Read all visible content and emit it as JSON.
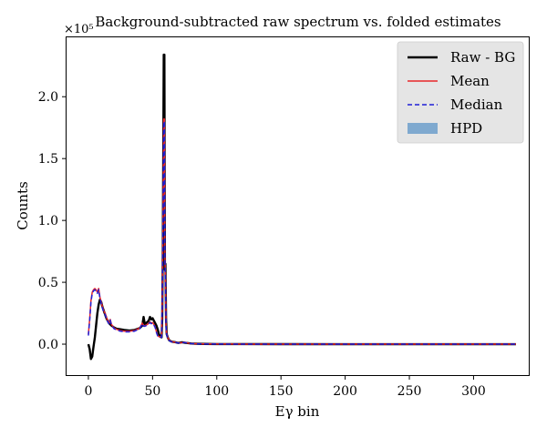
{
  "chart_data": {
    "type": "line",
    "title": "Background-subtracted raw spectrum vs. folded estimates",
    "xlabel": "Eγ bin",
    "ylabel": "Counts",
    "y_multiplier_label": "×10⁵",
    "y_scale_factor": 100000,
    "xlim": [
      -17,
      343
    ],
    "ylim": [
      -25000,
      248000
    ],
    "xticks": [
      0,
      50,
      100,
      150,
      200,
      250,
      300
    ],
    "xtick_labels": [
      "0",
      "50",
      "100",
      "150",
      "200",
      "250",
      "300"
    ],
    "yticks": [
      0,
      50000,
      100000,
      150000,
      200000
    ],
    "ytick_labels": [
      "0.0",
      "0.5",
      "1.0",
      "1.5",
      "2.0"
    ],
    "legend_position": "top-right",
    "legend": [
      {
        "label": "Raw - BG",
        "style": "solid-line",
        "color": "#000000"
      },
      {
        "label": "Mean",
        "style": "solid-line",
        "color": "#e8262a"
      },
      {
        "label": "Median",
        "style": "dashed-line",
        "color": "#1f1fd6"
      },
      {
        "label": "HPD",
        "style": "patch",
        "color": "#7fa9cf"
      }
    ],
    "series": [
      {
        "name": "Raw - BG",
        "color": "#000000",
        "points": [
          [
            0,
            0
          ],
          [
            1,
            -4000
          ],
          [
            2,
            -12000
          ],
          [
            3,
            -10000
          ],
          [
            4,
            -2000
          ],
          [
            5,
            5000
          ],
          [
            6,
            15000
          ],
          [
            7,
            25000
          ],
          [
            8,
            32000
          ],
          [
            9,
            36000
          ],
          [
            10,
            34000
          ],
          [
            11,
            30000
          ],
          [
            12,
            27000
          ],
          [
            13,
            24000
          ],
          [
            14,
            21000
          ],
          [
            15,
            19000
          ],
          [
            16,
            17000
          ],
          [
            17,
            16000
          ],
          [
            18,
            15000
          ],
          [
            20,
            13500
          ],
          [
            22,
            12500
          ],
          [
            25,
            12000
          ],
          [
            28,
            11500
          ],
          [
            32,
            11000
          ],
          [
            36,
            11500
          ],
          [
            40,
            13000
          ],
          [
            42,
            15000
          ],
          [
            43,
            22000
          ],
          [
            44,
            16000
          ],
          [
            45,
            17000
          ],
          [
            47,
            19000
          ],
          [
            48,
            22000
          ],
          [
            49,
            20000
          ],
          [
            50,
            21000
          ],
          [
            51,
            19000
          ],
          [
            52,
            17000
          ],
          [
            53,
            15000
          ],
          [
            54,
            12000
          ],
          [
            55,
            8000
          ],
          [
            56,
            6000
          ],
          [
            57,
            5500
          ],
          [
            57.5,
            20000
          ],
          [
            58,
            80000
          ],
          [
            58.7,
            234000
          ],
          [
            59.2,
            234000
          ],
          [
            59.6,
            60000
          ],
          [
            60,
            65000
          ],
          [
            60.5,
            20000
          ],
          [
            61,
            8000
          ],
          [
            62,
            5000
          ],
          [
            63,
            3000
          ],
          [
            65,
            2000
          ],
          [
            68,
            1500
          ],
          [
            70,
            1000
          ],
          [
            73,
            1500
          ],
          [
            75,
            1200
          ],
          [
            78,
            800
          ],
          [
            80,
            500
          ],
          [
            85,
            300
          ],
          [
            90,
            200
          ],
          [
            100,
            100
          ],
          [
            120,
            50
          ],
          [
            150,
            20
          ],
          [
            200,
            0
          ],
          [
            250,
            0
          ],
          [
            300,
            0
          ],
          [
            333,
            0
          ]
        ]
      },
      {
        "name": "Mean",
        "color": "#e8262a",
        "points": [
          [
            0,
            8000
          ],
          [
            1,
            20000
          ],
          [
            2,
            35000
          ],
          [
            3,
            42000
          ],
          [
            4,
            44000
          ],
          [
            5,
            45000
          ],
          [
            6,
            44000
          ],
          [
            7,
            42000
          ],
          [
            8,
            45000
          ],
          [
            9,
            38000
          ],
          [
            10,
            34000
          ],
          [
            11,
            30000
          ],
          [
            12,
            27000
          ],
          [
            13,
            25000
          ],
          [
            14,
            22000
          ],
          [
            15,
            19000
          ],
          [
            16,
            17000
          ],
          [
            17,
            20000
          ],
          [
            18,
            16000
          ],
          [
            20,
            13000
          ],
          [
            22,
            12000
          ],
          [
            25,
            11000
          ],
          [
            28,
            10500
          ],
          [
            32,
            10500
          ],
          [
            36,
            11000
          ],
          [
            40,
            13000
          ],
          [
            42,
            17000
          ],
          [
            43,
            15000
          ],
          [
            44,
            15000
          ],
          [
            46,
            16000
          ],
          [
            48,
            18000
          ],
          [
            49,
            17000
          ],
          [
            50,
            17500
          ],
          [
            51,
            16000
          ],
          [
            52,
            14000
          ],
          [
            53,
            10000
          ],
          [
            54,
            7000
          ],
          [
            55,
            6000
          ],
          [
            56,
            6000
          ],
          [
            57,
            6000
          ],
          [
            57.5,
            30000
          ],
          [
            58,
            80000
          ],
          [
            58.7,
            182000
          ],
          [
            59.2,
            182000
          ],
          [
            59.6,
            70000
          ],
          [
            60,
            55000
          ],
          [
            60.5,
            15000
          ],
          [
            61,
            8000
          ],
          [
            62,
            5000
          ],
          [
            63,
            3000
          ],
          [
            65,
            2000
          ],
          [
            68,
            1500
          ],
          [
            70,
            1000
          ],
          [
            73,
            1200
          ],
          [
            75,
            1500
          ],
          [
            78,
            800
          ],
          [
            80,
            500
          ],
          [
            85,
            300
          ],
          [
            90,
            200
          ],
          [
            100,
            100
          ],
          [
            120,
            50
          ],
          [
            150,
            20
          ],
          [
            200,
            0
          ],
          [
            250,
            0
          ],
          [
            300,
            0
          ],
          [
            333,
            0
          ]
        ]
      },
      {
        "name": "Median",
        "color": "#1f1fd6",
        "points": [
          [
            0,
            7000
          ],
          [
            1,
            19000
          ],
          [
            2,
            34000
          ],
          [
            3,
            41000
          ],
          [
            4,
            43000
          ],
          [
            5,
            44000
          ],
          [
            6,
            43000
          ],
          [
            7,
            41000
          ],
          [
            8,
            44000
          ],
          [
            9,
            37000
          ],
          [
            10,
            33000
          ],
          [
            11,
            29000
          ],
          [
            12,
            26000
          ],
          [
            13,
            24000
          ],
          [
            14,
            21000
          ],
          [
            15,
            18500
          ],
          [
            16,
            16500
          ],
          [
            17,
            19500
          ],
          [
            18,
            15500
          ],
          [
            20,
            12500
          ],
          [
            22,
            11500
          ],
          [
            25,
            10500
          ],
          [
            28,
            10000
          ],
          [
            32,
            10000
          ],
          [
            36,
            10500
          ],
          [
            40,
            12500
          ],
          [
            42,
            16500
          ],
          [
            43,
            14500
          ],
          [
            44,
            14500
          ],
          [
            46,
            15500
          ],
          [
            48,
            17500
          ],
          [
            49,
            16500
          ],
          [
            50,
            17000
          ],
          [
            51,
            15500
          ],
          [
            52,
            13500
          ],
          [
            53,
            9500
          ],
          [
            54,
            6500
          ],
          [
            55,
            5500
          ],
          [
            56,
            5500
          ],
          [
            57,
            5500
          ],
          [
            57.5,
            29000
          ],
          [
            58,
            78000
          ],
          [
            58.7,
            180000
          ],
          [
            59.2,
            180000
          ],
          [
            59.6,
            68000
          ],
          [
            60,
            53000
          ],
          [
            60.5,
            14000
          ],
          [
            61,
            7500
          ],
          [
            62,
            4500
          ],
          [
            63,
            2800
          ],
          [
            65,
            1800
          ],
          [
            68,
            1400
          ],
          [
            70,
            900
          ],
          [
            73,
            1100
          ],
          [
            75,
            1400
          ],
          [
            78,
            700
          ],
          [
            80,
            450
          ],
          [
            85,
            250
          ],
          [
            90,
            150
          ],
          [
            100,
            80
          ],
          [
            120,
            40
          ],
          [
            150,
            10
          ],
          [
            200,
            0
          ],
          [
            250,
            0
          ],
          [
            300,
            0
          ],
          [
            333,
            0
          ]
        ]
      }
    ]
  }
}
